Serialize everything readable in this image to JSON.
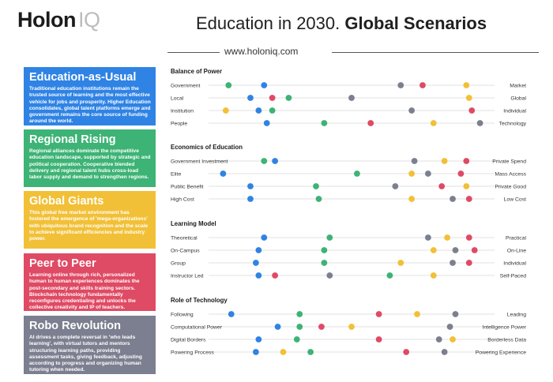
{
  "header": {
    "logo_main": "Holon",
    "logo_suffix": "IQ",
    "title_plain": "Education in 2030. ",
    "title_bold": "Global Scenarios",
    "url": "www.holoniq.com"
  },
  "scenarios": [
    {
      "title": "Education-as-Usual",
      "color": "#2f83e4",
      "text": "Traditional education institutions remain the trusted source of learning and the most effective vehicle for jobs and prosperity. Higher Education consolidates, global talent platforms emerge and government remains the core source of funding around the world."
    },
    {
      "title": "Regional Rising",
      "color": "#3db375",
      "text": "Regional alliances dominate the competitive education landscape, supported by strategic and political cooperation. Cooperative blended delivery and regional talent hubs cross-load labor supply and demand to strengthen regions."
    },
    {
      "title": "Global Giants",
      "color": "#f2c037",
      "text": "This global free market environment has fostered the emergence of 'mega-organizations' with ubiquitous brand recognition and the scale to achieve significant efficiencies and industry power."
    },
    {
      "title": "Peer to Peer",
      "color": "#df4a64",
      "text": "Learning online through rich, personalized human to human experiences dominates the post-secondary and skills training sectors. Blockchain technology fundamentally reconfigures credentialing and unlocks the collective creativity and IP of teachers."
    },
    {
      "title": "Robo Revolution",
      "color": "#7b7f8f",
      "text": "AI drives a complete reversal in 'who leads learning', with virtual tutors and mentors structuring learning paths, providing assessment tasks, giving feedback, adjusting according to progress and organizing human tutoring when needed."
    }
  ],
  "chart_data": {
    "type": "scatter",
    "x_range": [
      0,
      1
    ],
    "series": [
      {
        "name": "Education-as-Usual",
        "color": "#2f83e4"
      },
      {
        "name": "Regional Rising",
        "color": "#3db375"
      },
      {
        "name": "Global Giants",
        "color": "#f2c037"
      },
      {
        "name": "Peer to Peer",
        "color": "#df4a64"
      },
      {
        "name": "Robo Revolution",
        "color": "#7b7f8f"
      }
    ],
    "groups": [
      {
        "title": "Balance of Power",
        "rows": [
          {
            "left": "Government",
            "right": "Market",
            "values": [
              0.18,
              0.05,
              0.92,
              0.76,
              0.68
            ]
          },
          {
            "left": "Local",
            "right": "Global",
            "values": [
              0.13,
              0.27,
              0.93,
              0.21,
              0.5
            ]
          },
          {
            "left": "Institution",
            "right": "Individual",
            "values": [
              0.16,
              0.21,
              0.04,
              0.94,
              0.72
            ]
          },
          {
            "left": "People",
            "right": "Technology",
            "values": [
              0.19,
              0.4,
              0.8,
              0.57,
              0.97
            ]
          }
        ]
      },
      {
        "title": "Economics of Education",
        "rows": [
          {
            "left": "Government Investment",
            "right": "Private Spend",
            "values": [
              0.22,
              0.18,
              0.84,
              0.92,
              0.73
            ]
          },
          {
            "left": "Elite",
            "right": "Mass Access",
            "values": [
              0.03,
              0.52,
              0.72,
              0.9,
              0.78
            ]
          },
          {
            "left": "Public Benefit",
            "right": "Private Good",
            "values": [
              0.13,
              0.37,
              0.92,
              0.83,
              0.66
            ]
          },
          {
            "left": "High Cost",
            "right": "Low Cost",
            "values": [
              0.13,
              0.38,
              0.72,
              0.93,
              0.87
            ]
          }
        ]
      },
      {
        "title": "Learning Model",
        "rows": [
          {
            "left": "Theoretical",
            "right": "Practical",
            "values": [
              0.18,
              0.42,
              0.85,
              0.93,
              0.78
            ]
          },
          {
            "left": "On-Campus",
            "right": "On-Line",
            "values": [
              0.16,
              0.4,
              0.8,
              0.95,
              0.88
            ]
          },
          {
            "left": "Group",
            "right": "Individual",
            "values": [
              0.15,
              0.4,
              0.68,
              0.93,
              0.87
            ]
          },
          {
            "left": "Instructor Led",
            "right": "Self-Paced",
            "values": [
              0.16,
              0.64,
              0.8,
              0.22,
              0.42
            ]
          }
        ]
      },
      {
        "title": "Role of Technology",
        "rows": [
          {
            "left": "Following",
            "right": "Leading",
            "values": [
              0.06,
              0.31,
              0.74,
              0.6,
              0.88
            ]
          },
          {
            "left": "Computational Power",
            "right": "Intelligence Power",
            "values": [
              0.23,
              0.31,
              0.5,
              0.39,
              0.86
            ]
          },
          {
            "left": "Digital Borders",
            "right": "Borderless Data",
            "values": [
              0.16,
              0.3,
              0.87,
              0.6,
              0.82
            ]
          },
          {
            "left": "Powering Process",
            "right": "Powering Experience",
            "values": [
              0.15,
              0.35,
              0.25,
              0.7,
              0.84
            ]
          }
        ]
      }
    ]
  }
}
